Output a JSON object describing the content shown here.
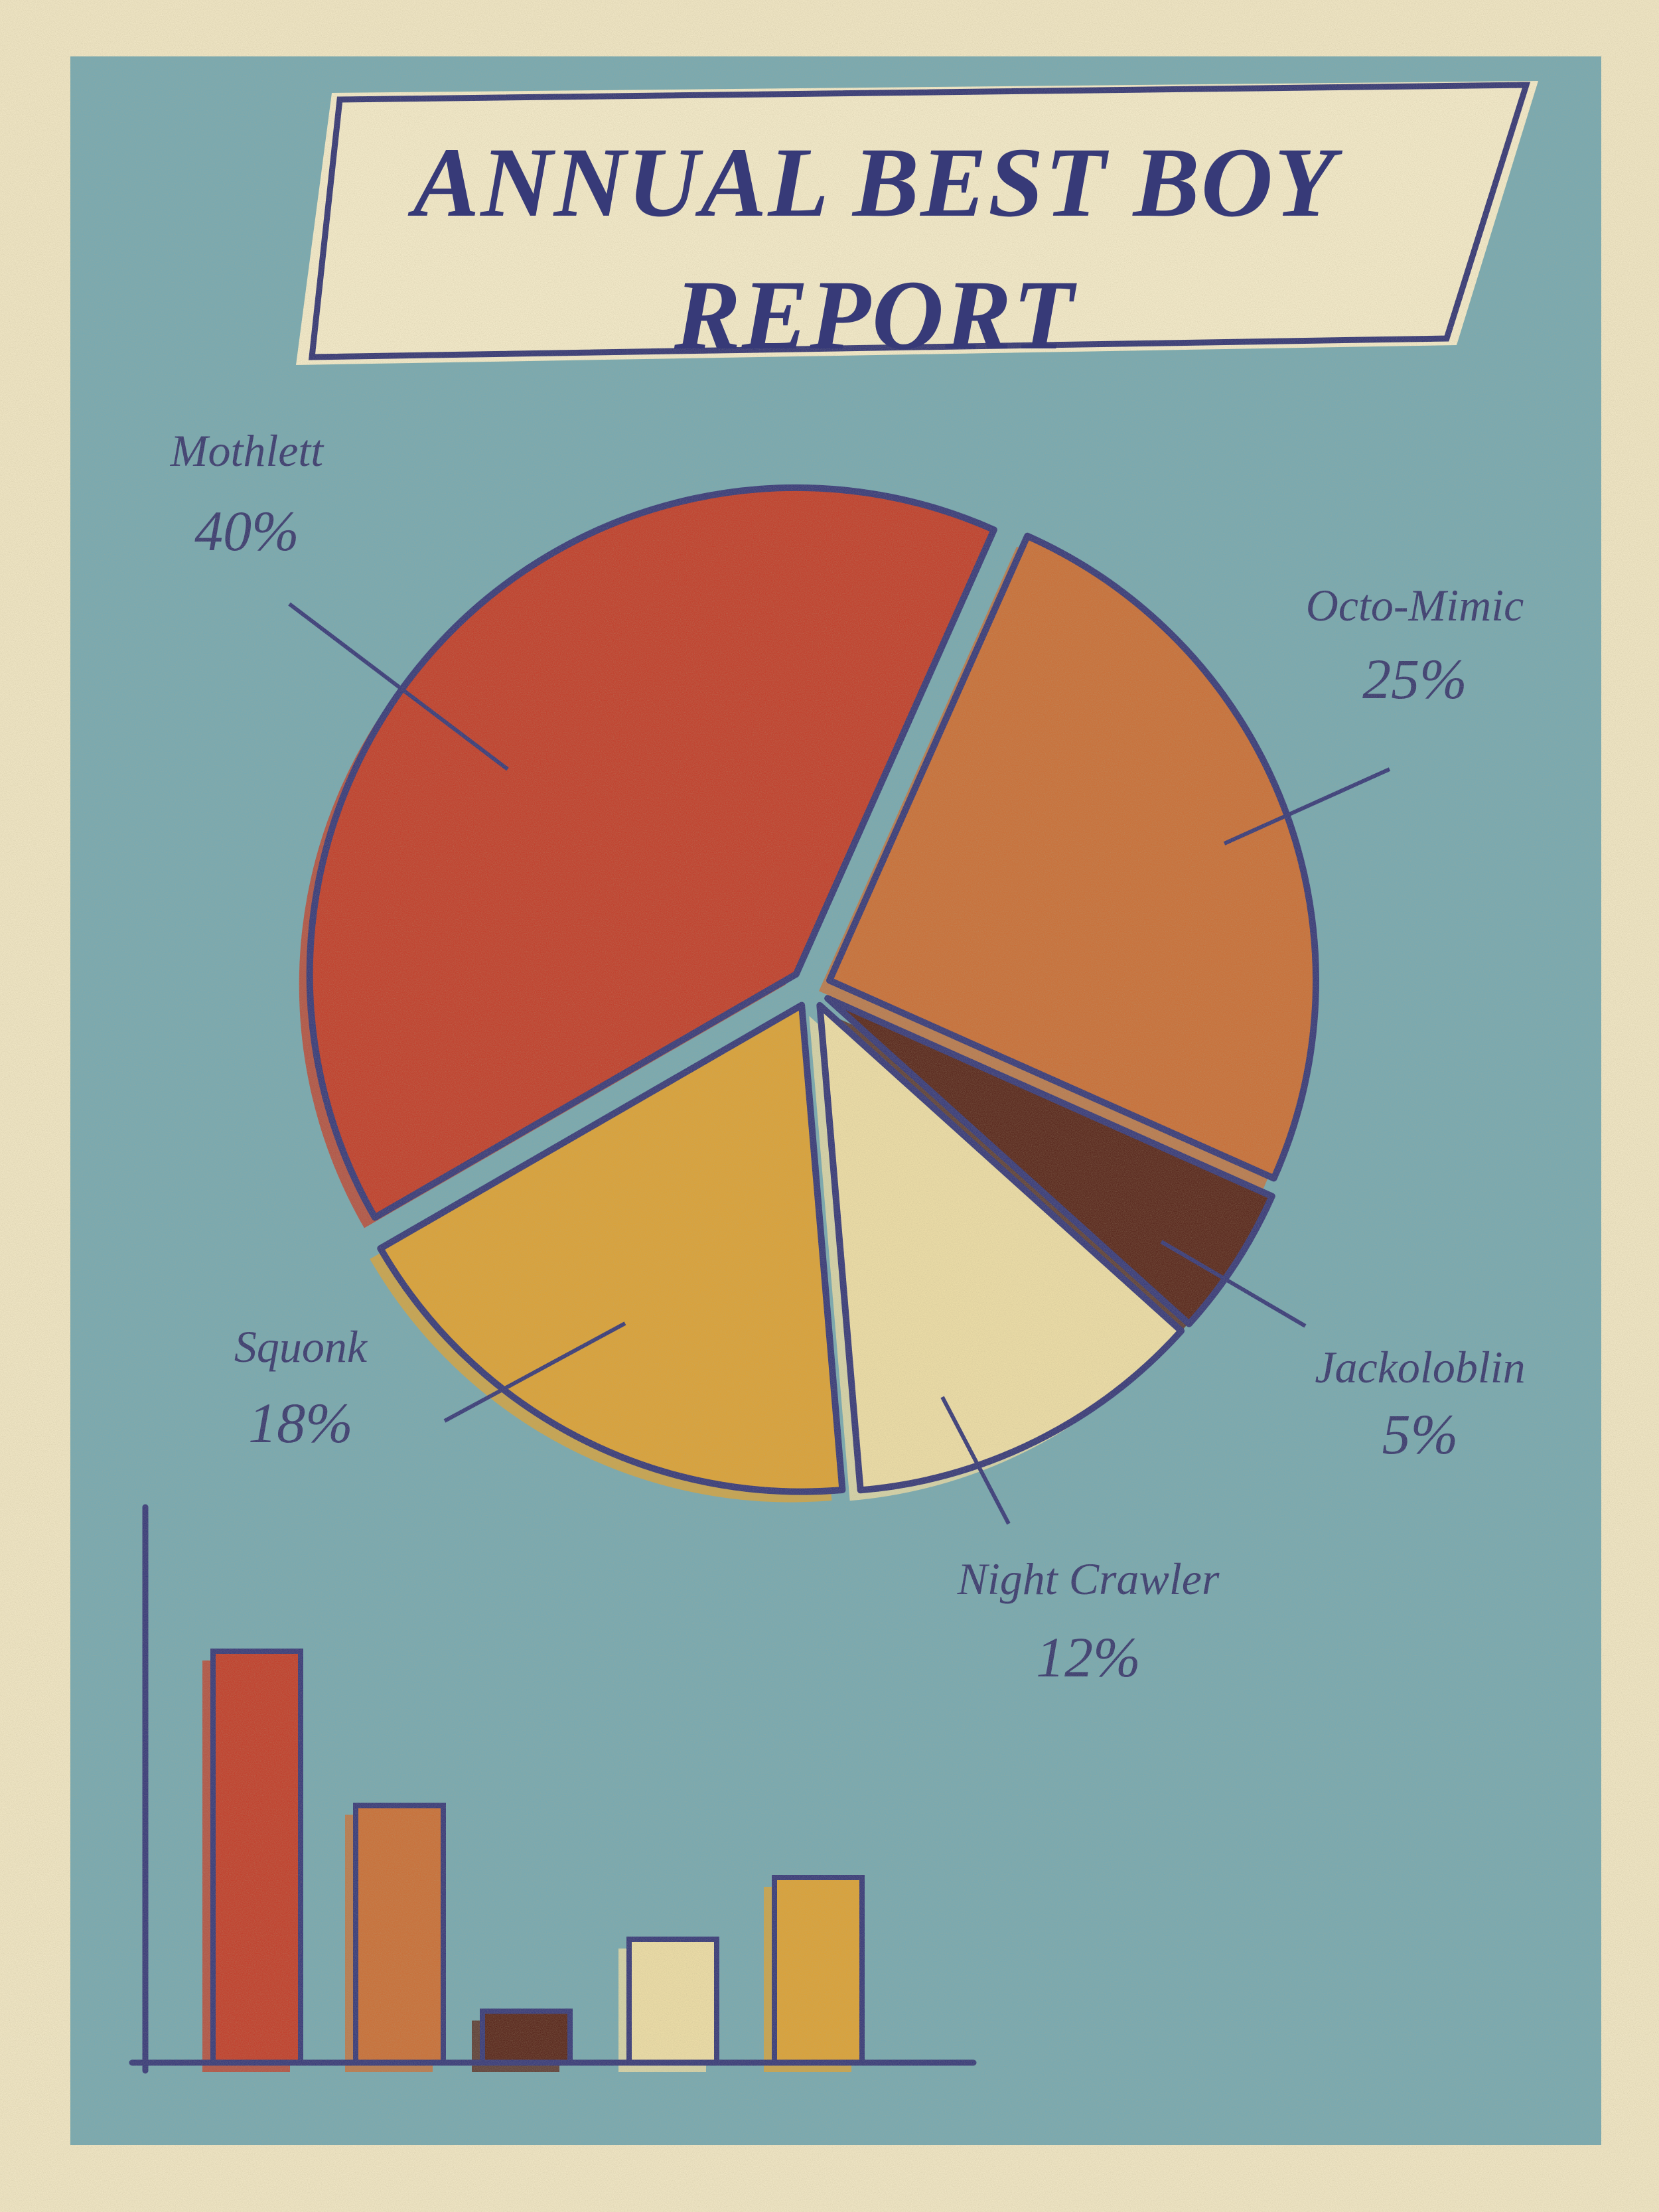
{
  "chart_data": [
    {
      "type": "pie",
      "title": "ANNUAL BEST BOY REPORT",
      "categories": [
        "Mothlett",
        "Octo-Mimic",
        "Jackoloblin",
        "Night Crawler",
        "Squonk"
      ],
      "values": [
        40,
        25,
        5,
        12,
        18
      ],
      "value_labels": [
        "40%",
        "25%",
        "5%",
        "12%",
        "18%"
      ],
      "colors": [
        "#c0422f",
        "#c8713b",
        "#5b2b20",
        "#eadba6",
        "#d9a23b"
      ]
    },
    {
      "type": "bar",
      "values": [
        40,
        25,
        5,
        12,
        18
      ],
      "colors": [
        "#c0422f",
        "#c8713b",
        "#5b2b20",
        "#eadba6",
        "#d9a23b"
      ],
      "ylim": [
        0,
        54
      ]
    }
  ]
}
